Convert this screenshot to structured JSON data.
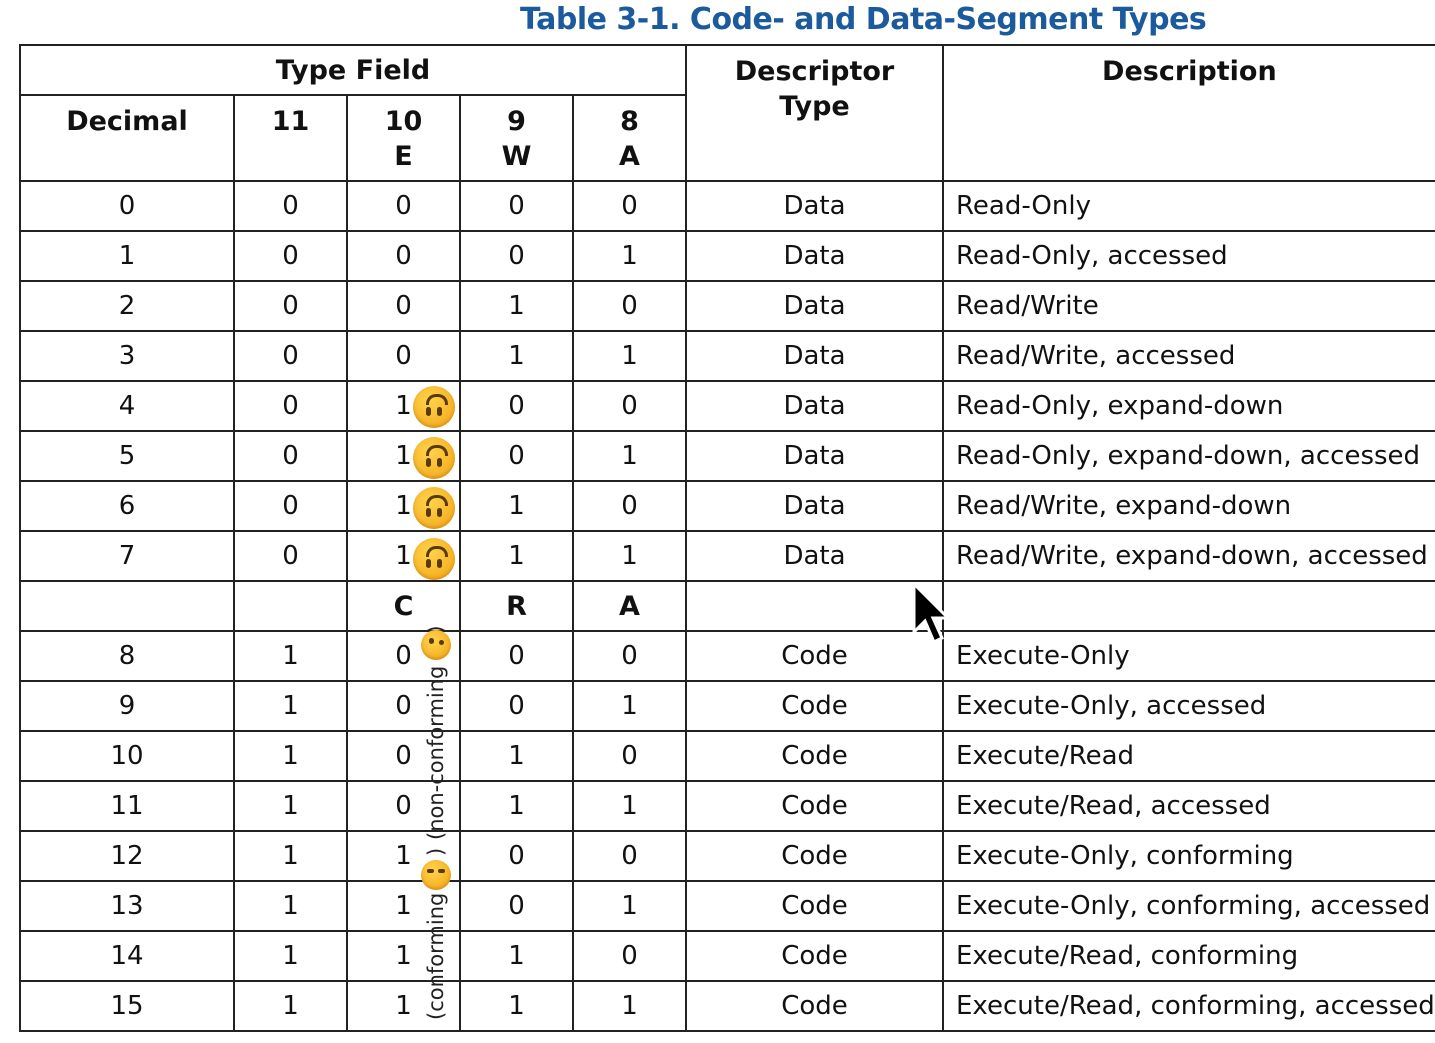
{
  "title": "Table 3-1.  Code- and Data-Segment Types",
  "headers": {
    "type_field": "Type Field",
    "decimal": "Decimal",
    "bit11": "11",
    "bit10": "10",
    "bit10_letter": "E",
    "bit9": "9",
    "bit9_letter": "W",
    "bit8": "8",
    "bit8_letter": "A",
    "descriptor_type_line1": "Descriptor",
    "descriptor_type_line2": "Type",
    "description": "Description"
  },
  "code_subheader": {
    "c": "C",
    "r": "R",
    "a": "A"
  },
  "annotations": {
    "non_conforming": "(non-conforming",
    "non_conforming_close": ")",
    "conforming": "(conforming",
    "conforming_close": ")"
  },
  "data_rows": [
    {
      "decimal": "0",
      "b11": "0",
      "b10": "0",
      "b9": "0",
      "b8": "0",
      "type": "Data",
      "description": "Read-Only"
    },
    {
      "decimal": "1",
      "b11": "0",
      "b10": "0",
      "b9": "0",
      "b8": "1",
      "type": "Data",
      "description": "Read-Only, accessed"
    },
    {
      "decimal": "2",
      "b11": "0",
      "b10": "0",
      "b9": "1",
      "b8": "0",
      "type": "Data",
      "description": "Read/Write"
    },
    {
      "decimal": "3",
      "b11": "0",
      "b10": "0",
      "b9": "1",
      "b8": "1",
      "type": "Data",
      "description": "Read/Write, accessed"
    },
    {
      "decimal": "4",
      "b11": "0",
      "b10": "1",
      "b9": "0",
      "b8": "0",
      "type": "Data",
      "description": "Read-Only, expand-down"
    },
    {
      "decimal": "5",
      "b11": "0",
      "b10": "1",
      "b9": "0",
      "b8": "1",
      "type": "Data",
      "description": "Read-Only, expand-down, accessed"
    },
    {
      "decimal": "6",
      "b11": "0",
      "b10": "1",
      "b9": "1",
      "b8": "0",
      "type": "Data",
      "description": "Read/Write, expand-down"
    },
    {
      "decimal": "7",
      "b11": "0",
      "b10": "1",
      "b9": "1",
      "b8": "1",
      "type": "Data",
      "description": "Read/Write, expand-down, accessed"
    }
  ],
  "code_rows": [
    {
      "decimal": "8",
      "b11": "1",
      "b10": "0",
      "b9": "0",
      "b8": "0",
      "type": "Code",
      "description": "Execute-Only"
    },
    {
      "decimal": "9",
      "b11": "1",
      "b10": "0",
      "b9": "0",
      "b8": "1",
      "type": "Code",
      "description": "Execute-Only, accessed"
    },
    {
      "decimal": "10",
      "b11": "1",
      "b10": "0",
      "b9": "1",
      "b8": "0",
      "type": "Code",
      "description": "Execute/Read"
    },
    {
      "decimal": "11",
      "b11": "1",
      "b10": "0",
      "b9": "1",
      "b8": "1",
      "type": "Code",
      "description": "Execute/Read, accessed"
    },
    {
      "decimal": "12",
      "b11": "1",
      "b10": "1",
      "b9": "0",
      "b8": "0",
      "type": "Code",
      "description": "Execute-Only, conforming"
    },
    {
      "decimal": "13",
      "b11": "1",
      "b10": "1",
      "b9": "0",
      "b8": "1",
      "type": "Code",
      "description": "Execute-Only, conforming, accessed"
    },
    {
      "decimal": "14",
      "b11": "1",
      "b10": "1",
      "b9": "1",
      "b8": "0",
      "type": "Code",
      "description": "Execute/Read, conforming"
    },
    {
      "decimal": "15",
      "b11": "1",
      "b10": "1",
      "b9": "1",
      "b8": "1",
      "type": "Code",
      "description": "Execute/Read, conforming, accessed"
    }
  ],
  "icons": {
    "upside_down_face": "upside-down-face-icon",
    "zany_face": "zany-face-icon",
    "expressionless_face": "expressionless-face-icon",
    "cursor": "mouse-pointer-icon"
  },
  "colors": {
    "title": "#1c5a9e",
    "emoji": "#f7b91e"
  }
}
